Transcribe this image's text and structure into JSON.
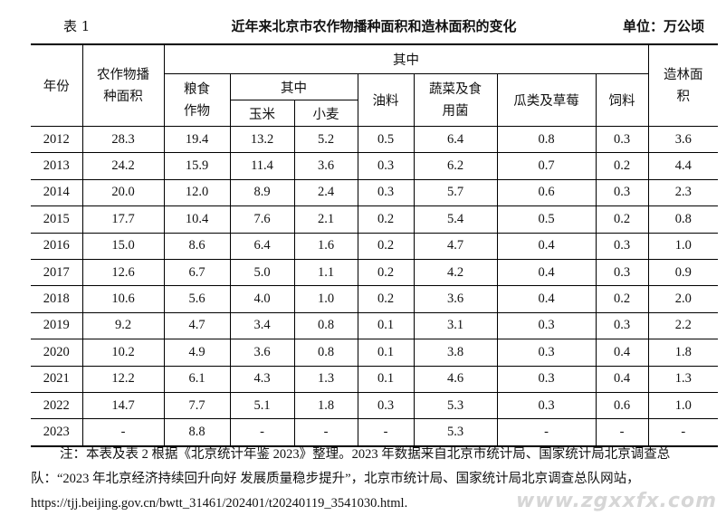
{
  "caption": {
    "table_no": "表 1",
    "title": "近年来北京市农作物播种面积和造林面积的变化",
    "unit": "单位：万公顷"
  },
  "headers": {
    "year": "年份",
    "sown_area": "农作物播种面积",
    "of_which_outer": "其中",
    "grain": "粮食作物",
    "of_which_inner": "其中",
    "corn": "玉米",
    "wheat": "小麦",
    "oil": "油料",
    "vegetables": "蔬菜及食用菌",
    "melons": "瓜类及草莓",
    "feed": "饲料",
    "afforestation": "造林面积"
  },
  "rows": [
    [
      "2012",
      "28.3",
      "19.4",
      "13.2",
      "5.2",
      "0.5",
      "6.4",
      "0.8",
      "0.3",
      "3.6"
    ],
    [
      "2013",
      "24.2",
      "15.9",
      "11.4",
      "3.6",
      "0.3",
      "6.2",
      "0.7",
      "0.2",
      "4.4"
    ],
    [
      "2014",
      "20.0",
      "12.0",
      "8.9",
      "2.4",
      "0.3",
      "5.7",
      "0.6",
      "0.3",
      "2.3"
    ],
    [
      "2015",
      "17.7",
      "10.4",
      "7.6",
      "2.1",
      "0.2",
      "5.4",
      "0.5",
      "0.2",
      "0.8"
    ],
    [
      "2016",
      "15.0",
      "8.6",
      "6.4",
      "1.6",
      "0.2",
      "4.7",
      "0.4",
      "0.3",
      "1.0"
    ],
    [
      "2017",
      "12.6",
      "6.7",
      "5.0",
      "1.1",
      "0.2",
      "4.2",
      "0.4",
      "0.3",
      "0.9"
    ],
    [
      "2018",
      "10.6",
      "5.6",
      "4.0",
      "1.0",
      "0.2",
      "3.6",
      "0.4",
      "0.2",
      "2.0"
    ],
    [
      "2019",
      "9.2",
      "4.7",
      "3.4",
      "0.8",
      "0.1",
      "3.1",
      "0.3",
      "0.3",
      "2.2"
    ],
    [
      "2020",
      "10.2",
      "4.9",
      "3.6",
      "0.8",
      "0.1",
      "3.8",
      "0.3",
      "0.4",
      "1.8"
    ],
    [
      "2021",
      "12.2",
      "6.1",
      "4.3",
      "1.3",
      "0.1",
      "4.6",
      "0.3",
      "0.4",
      "1.3"
    ],
    [
      "2022",
      "14.7",
      "7.7",
      "5.1",
      "1.8",
      "0.3",
      "5.3",
      "0.3",
      "0.6",
      "1.0"
    ],
    [
      "2023",
      "-",
      "8.8",
      "-",
      "-",
      "-",
      "5.3",
      "-",
      "-",
      "-"
    ]
  ],
  "note": "注：本表及表 2 根据《北京统计年鉴 2023》整理。2023 年数据来自北京市统计局、国家统计局北京调查总队：“2023 年北京经济持续回升向好 发展质量稳步提升”，北京市统计局、国家统计局北京调查总队网站，https://tjj.beijing.gov.cn/bwtt_31461/202401/t20240119_3541030.html.",
  "watermark": "www.zgxxfx.com"
}
